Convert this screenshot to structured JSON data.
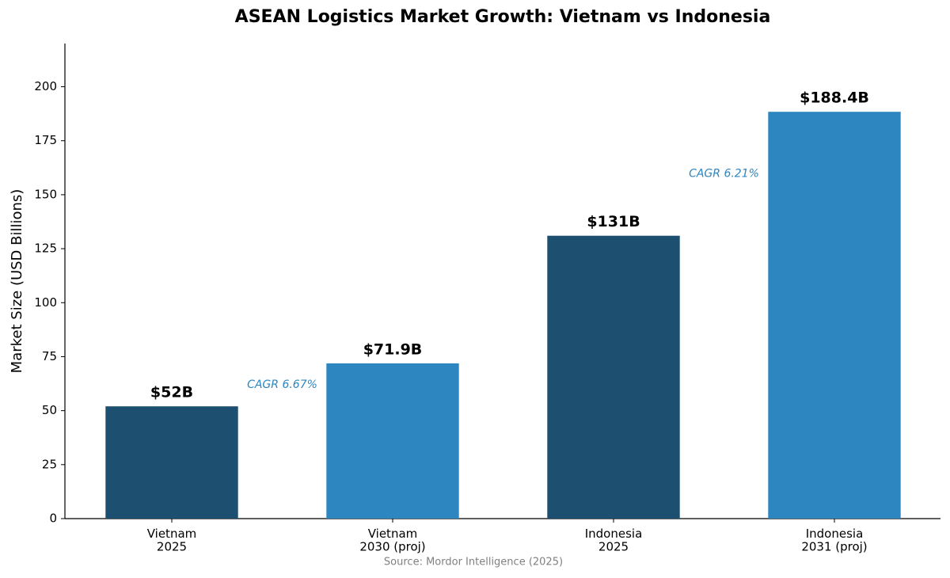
{
  "chart_data": {
    "type": "bar",
    "title": "ASEAN Logistics Market Growth: Vietnam vs Indonesia",
    "y_label": "Market Size (USD Billions)",
    "categories": [
      "Vietnam\n2025",
      "Vietnam\n2030 (proj)",
      "Indonesia\n2025",
      "Indonesia\n2031 (proj)"
    ],
    "values": [
      52,
      71.9,
      131,
      188.4
    ],
    "value_labels": [
      "$52B",
      "$71.9B",
      "$131B",
      "$188.4B"
    ],
    "colors": [
      "#1c4f70",
      "#2e86c1",
      "#1c4f70",
      "#2e86c1"
    ],
    "annotations": [
      "CAGR 6.67%",
      "CAGR 6.21%"
    ],
    "annotation_color": "#2e86c1",
    "source": "Source: Mordor Intelligence (2025)",
    "ylim": [
      0,
      220
    ],
    "yticks": [
      0,
      25,
      50,
      75,
      100,
      125,
      150,
      175,
      200
    ],
    "grid": false
  }
}
